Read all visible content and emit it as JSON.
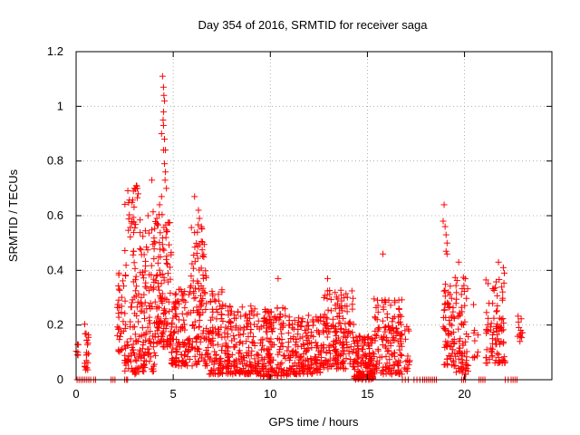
{
  "chart_data": {
    "type": "scatter",
    "title": "Day 354 of 2016, SRMTID for receiver saga",
    "xlabel": "GPS time / hours",
    "ylabel": "SRMTID / TECUs",
    "xlim": [
      0,
      24.5
    ],
    "ylim": [
      0,
      1.2
    ],
    "x_ticks": [
      0,
      5,
      10,
      15,
      20
    ],
    "y_ticks": [
      0,
      0.2,
      0.4,
      0.6,
      0.8,
      1,
      1.2
    ],
    "x_tick_labels": [
      "0",
      "5",
      "10",
      "15",
      "20"
    ],
    "y_tick_labels": [
      "0",
      "0.2",
      "0.4",
      "0.6",
      "0.8",
      "1",
      "1.2"
    ],
    "grid": true,
    "marker": "plus",
    "series_color": "#ff0000",
    "series": [
      {
        "name": "SRMTID",
        "seed": 354,
        "segments": [
          {
            "x": [
              0.0,
              0.15
            ],
            "n": 6,
            "ymin": 0.08,
            "ymax": 0.14
          },
          {
            "x": [
              0.4,
              0.65
            ],
            "n": 22,
            "ymin": 0.03,
            "ymax": 0.22
          },
          {
            "x": [
              2.1,
              2.5
            ],
            "n": 30,
            "ymin": 0.1,
            "ymax": 0.39
          },
          {
            "x": [
              2.5,
              3.3
            ],
            "n": 110,
            "ymin": 0.02,
            "ymax": 0.72
          },
          {
            "x": [
              3.3,
              4.1
            ],
            "n": 110,
            "ymin": 0.03,
            "ymax": 0.62
          },
          {
            "x": [
              4.1,
              4.9
            ],
            "n": 120,
            "ymin": 0.12,
            "ymax": 0.62
          },
          {
            "x": [
              4.9,
              5.9
            ],
            "n": 120,
            "ymin": 0.05,
            "ymax": 0.35
          },
          {
            "x": [
              5.9,
              6.7
            ],
            "n": 110,
            "ymin": 0.05,
            "ymax": 0.57
          },
          {
            "x": [
              6.7,
              7.8
            ],
            "n": 120,
            "ymin": 0.02,
            "ymax": 0.33
          },
          {
            "x": [
              7.8,
              9.5
            ],
            "n": 170,
            "ymin": 0.02,
            "ymax": 0.27
          },
          {
            "x": [
              9.5,
              10.9
            ],
            "n": 150,
            "ymin": 0.01,
            "ymax": 0.27
          },
          {
            "x": [
              10.9,
              12.6
            ],
            "n": 170,
            "ymin": 0.02,
            "ymax": 0.24
          },
          {
            "x": [
              12.6,
              14.3
            ],
            "n": 180,
            "ymin": 0.04,
            "ymax": 0.33
          },
          {
            "x": [
              14.3,
              15.3
            ],
            "n": 140,
            "ymin": 0.0,
            "ymax": 0.16
          },
          {
            "x": [
              15.3,
              16.8
            ],
            "n": 150,
            "ymin": 0.02,
            "ymax": 0.3
          },
          {
            "x": [
              16.9,
              17.2
            ],
            "n": 15,
            "ymin": 0.03,
            "ymax": 0.2
          },
          {
            "x": [
              18.9,
              19.5
            ],
            "n": 70,
            "ymin": 0.05,
            "ymax": 0.35
          },
          {
            "x": [
              19.5,
              20.2
            ],
            "n": 70,
            "ymin": 0.02,
            "ymax": 0.38
          },
          {
            "x": [
              20.4,
              20.7
            ],
            "n": 10,
            "ymin": 0.08,
            "ymax": 0.32
          },
          {
            "x": [
              21.1,
              22.1
            ],
            "n": 90,
            "ymin": 0.06,
            "ymax": 0.38
          },
          {
            "x": [
              22.7,
              23.0
            ],
            "n": 12,
            "ymin": 0.14,
            "ymax": 0.24
          }
        ],
        "points": [
          [
            4.45,
            1.11
          ],
          [
            4.5,
            1.07
          ],
          [
            4.52,
            1.04
          ],
          [
            4.55,
            1.02
          ],
          [
            4.5,
            0.98
          ],
          [
            4.48,
            0.95
          ],
          [
            4.5,
            0.93
          ],
          [
            4.4,
            0.9
          ],
          [
            4.55,
            0.88
          ],
          [
            4.5,
            0.84
          ],
          [
            4.6,
            0.84
          ],
          [
            4.55,
            0.79
          ],
          [
            4.6,
            0.76
          ],
          [
            4.58,
            0.73
          ],
          [
            4.65,
            0.7
          ],
          [
            4.4,
            0.67
          ],
          [
            4.3,
            0.64
          ],
          [
            3.0,
            0.7
          ],
          [
            3.1,
            0.71
          ],
          [
            3.15,
            0.7
          ],
          [
            2.95,
            0.69
          ],
          [
            3.2,
            0.68
          ],
          [
            3.9,
            0.73
          ],
          [
            3.7,
            0.6
          ],
          [
            6.1,
            0.67
          ],
          [
            6.3,
            0.62
          ],
          [
            6.35,
            0.59
          ],
          [
            6.45,
            0.56
          ],
          [
            15.8,
            0.46
          ],
          [
            18.95,
            0.64
          ],
          [
            18.9,
            0.58
          ],
          [
            19.0,
            0.56
          ],
          [
            19.05,
            0.53
          ],
          [
            19.1,
            0.5
          ],
          [
            19.05,
            0.47
          ],
          [
            19.1,
            0.46
          ],
          [
            19.7,
            0.43
          ],
          [
            21.75,
            0.43
          ],
          [
            22.0,
            0.41
          ],
          [
            22.05,
            0.39
          ],
          [
            12.95,
            0.37
          ],
          [
            10.4,
            0.37
          ],
          [
            2.2,
            0.39
          ]
        ],
        "zeros": [
          0.05,
          0.15,
          0.25,
          0.35,
          0.45,
          0.55,
          0.65,
          0.75,
          0.9,
          1.0,
          1.8,
          1.9,
          2.0,
          2.5,
          2.6,
          2.65,
          16.8,
          16.95,
          17.1,
          17.4,
          17.55,
          17.7,
          17.85,
          17.95,
          18.05,
          18.15,
          18.25,
          18.35,
          18.45,
          18.55,
          19.85,
          19.95,
          20.05,
          20.75,
          20.85,
          20.95,
          21.05,
          22.1,
          22.25,
          22.4,
          22.5,
          22.6,
          22.7
        ]
      }
    ]
  }
}
